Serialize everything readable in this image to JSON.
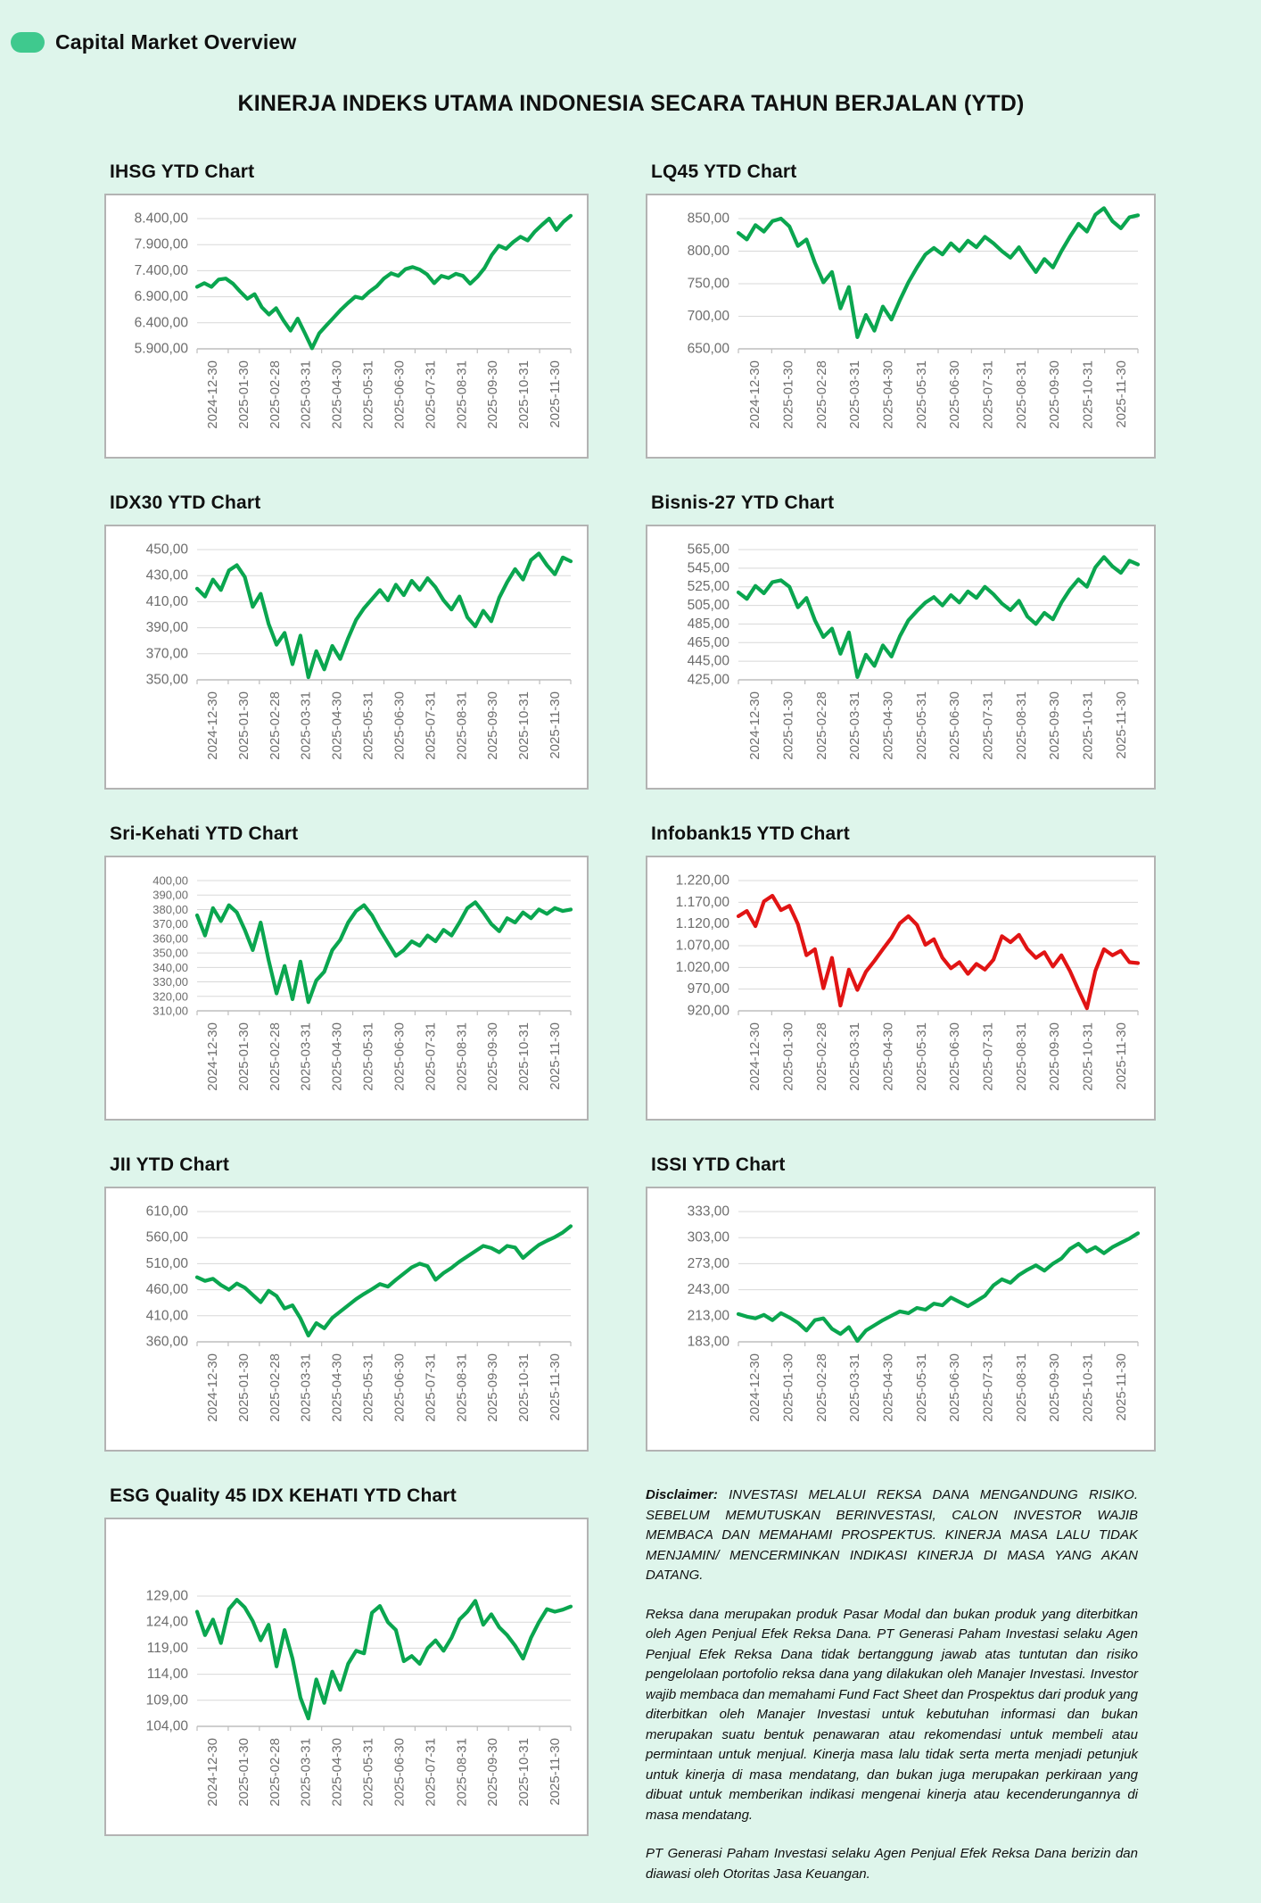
{
  "page": {
    "header_label": "Capital Market Overview",
    "main_title": "KINERJA INDEKS UTAMA INDONESIA SECARA TAHUN BERJALAN (YTD)"
  },
  "colors": {
    "background": "#def5eb",
    "brand_pill": "#3fc98e",
    "line_green": "#0aa64f",
    "line_red": "#e11414",
    "grid_gray": "#d8d8d8",
    "axis_gray": "#bdbdbd",
    "label_gray": "#6d6d6d"
  },
  "chart_data": {
    "type": "line-small-multiples",
    "grid": true,
    "legend": false,
    "x_labels": [
      "2024-12-30",
      "2025-01-30",
      "2025-02-28",
      "2025-03-31",
      "2025-04-30",
      "2025-05-31",
      "2025-06-30",
      "2025-07-31",
      "2025-08-31",
      "2025-09-30",
      "2025-10-31",
      "2025-11-30"
    ],
    "charts": [
      {
        "id": "ihsg",
        "column": "left",
        "order": 1,
        "type": "line",
        "title": "IHSG YTD Chart",
        "line_color": "#0aa64f",
        "ylim": [
          5900,
          8400
        ],
        "y_ticks": [
          8400,
          7900,
          7400,
          6900,
          6400,
          5900
        ],
        "y_tick_labels": [
          "8.400,00",
          "7.900,00",
          "7.400,00",
          "6.900,00",
          "6.400,00",
          "5.900,00"
        ],
        "values": [
          7090,
          7160,
          7090,
          7230,
          7250,
          7150,
          7000,
          6860,
          6950,
          6700,
          6560,
          6680,
          6450,
          6250,
          6480,
          6200,
          5910,
          6200,
          6350,
          6500,
          6650,
          6780,
          6900,
          6870,
          7000,
          7100,
          7250,
          7350,
          7300,
          7430,
          7470,
          7420,
          7330,
          7160,
          7300,
          7260,
          7340,
          7300,
          7150,
          7280,
          7450,
          7700,
          7880,
          7820,
          7950,
          8050,
          7980,
          8150,
          8280,
          8400,
          8180,
          8340,
          8455
        ]
      },
      {
        "id": "lq45",
        "column": "right",
        "order": 1,
        "type": "line",
        "title": "LQ45 YTD Chart",
        "line_color": "#0aa64f",
        "ylim": [
          650,
          850
        ],
        "y_ticks": [
          850,
          800,
          750,
          700,
          650
        ],
        "y_tick_labels": [
          "850,00",
          "800,00",
          "750,00",
          "700,00",
          "650,00"
        ],
        "values": [
          828,
          818,
          840,
          830,
          846,
          850,
          838,
          808,
          818,
          782,
          752,
          768,
          712,
          745,
          668,
          702,
          678,
          715,
          695,
          725,
          752,
          775,
          795,
          805,
          795,
          812,
          800,
          816,
          806,
          822,
          812,
          800,
          790,
          806,
          786,
          768,
          788,
          775,
          800,
          822,
          842,
          830,
          856,
          866,
          846,
          835,
          852,
          855
        ]
      },
      {
        "id": "idx30",
        "column": "left",
        "order": 2,
        "type": "line",
        "title": "IDX30 YTD Chart",
        "line_color": "#0aa64f",
        "ylim": [
          350,
          450
        ],
        "y_ticks": [
          450,
          430,
          410,
          390,
          370,
          350
        ],
        "y_tick_labels": [
          "450,00",
          "430,00",
          "410,00",
          "390,00",
          "370,00",
          "350,00"
        ],
        "values": [
          420,
          414,
          427,
          419,
          434,
          438,
          429,
          406,
          416,
          393,
          377,
          386,
          362,
          384,
          352,
          372,
          358,
          376,
          366,
          382,
          396,
          405,
          412,
          419,
          411,
          423,
          415,
          426,
          419,
          428,
          421,
          411,
          404,
          414,
          398,
          391,
          403,
          395,
          413,
          425,
          435,
          427,
          442,
          447,
          438,
          431,
          444,
          441
        ]
      },
      {
        "id": "bisnis27",
        "column": "right",
        "order": 2,
        "type": "line",
        "title": "Bisnis-27 YTD Chart",
        "line_color": "#0aa64f",
        "ylim": [
          425,
          565
        ],
        "y_ticks": [
          565,
          545,
          525,
          505,
          485,
          465,
          445,
          425
        ],
        "y_tick_labels": [
          "565,00",
          "545,00",
          "525,00",
          "505,00",
          "485,00",
          "465,00",
          "445,00",
          "425,00"
        ],
        "values": [
          519,
          512,
          526,
          518,
          530,
          532,
          525,
          503,
          513,
          489,
          471,
          480,
          453,
          476,
          428,
          452,
          440,
          462,
          450,
          472,
          489,
          499,
          508,
          514,
          505,
          516,
          508,
          520,
          513,
          525,
          517,
          507,
          500,
          510,
          493,
          485,
          497,
          490,
          508,
          522,
          533,
          525,
          546,
          557,
          547,
          540,
          553,
          549
        ]
      },
      {
        "id": "srikehati",
        "column": "left",
        "order": 3,
        "type": "line",
        "title": "Sri-Kehati YTD Chart",
        "line_color": "#0aa64f",
        "ylim": [
          310,
          400
        ],
        "y_ticks": [
          400,
          390,
          380,
          370,
          360,
          350,
          340,
          330,
          320,
          310
        ],
        "y_tick_labels": [
          "400,00",
          "390,00",
          "380,00",
          "370,00",
          "360,00",
          "350,00",
          "340,00",
          "330,00",
          "320,00",
          "310,00"
        ],
        "values": [
          376,
          362,
          381,
          372,
          383,
          378,
          366,
          352,
          371,
          345,
          322,
          341,
          318,
          344,
          316,
          331,
          337,
          352,
          359,
          371,
          379,
          383,
          376,
          366,
          357,
          348,
          352,
          358,
          355,
          362,
          358,
          366,
          362,
          371,
          381,
          385,
          378,
          370,
          365,
          374,
          371,
          378,
          374,
          380,
          377,
          381,
          379,
          380
        ]
      },
      {
        "id": "infobank15",
        "column": "right",
        "order": 3,
        "type": "line",
        "title": "Infobank15 YTD Chart",
        "line_color": "#e11414",
        "ylim": [
          920,
          1220
        ],
        "y_ticks": [
          1220,
          1170,
          1120,
          1070,
          1020,
          970,
          920
        ],
        "y_tick_labels": [
          "1.220,00",
          "1.170,00",
          "1.120,00",
          "1.070,00",
          "1.020,00",
          "970,00",
          "920,00"
        ],
        "values": [
          1138,
          1150,
          1115,
          1172,
          1185,
          1152,
          1162,
          1120,
          1048,
          1062,
          972,
          1042,
          932,
          1015,
          968,
          1010,
          1035,
          1062,
          1088,
          1122,
          1138,
          1118,
          1072,
          1085,
          1042,
          1018,
          1032,
          1005,
          1028,
          1015,
          1038,
          1092,
          1078,
          1095,
          1062,
          1042,
          1055,
          1022,
          1048,
          1012,
          968,
          926,
          1012,
          1062,
          1048,
          1058,
          1032,
          1030
        ]
      },
      {
        "id": "jii",
        "column": "left",
        "order": 4,
        "type": "line",
        "title": "JII YTD Chart",
        "line_color": "#0aa64f",
        "ylim": [
          360,
          610
        ],
        "y_ticks": [
          610,
          560,
          510,
          460,
          410,
          360
        ],
        "y_tick_labels": [
          "610,00",
          "560,00",
          "510,00",
          "460,00",
          "410,00",
          "360,00"
        ],
        "values": [
          484,
          477,
          481,
          469,
          460,
          472,
          464,
          450,
          436,
          458,
          448,
          424,
          430,
          405,
          372,
          396,
          386,
          406,
          418,
          430,
          442,
          452,
          461,
          471,
          466,
          479,
          491,
          503,
          510,
          505,
          479,
          492,
          502,
          514,
          524,
          534,
          544,
          540,
          532,
          544,
          541,
          521,
          534,
          546,
          554,
          561,
          570,
          582
        ]
      },
      {
        "id": "issi",
        "column": "right",
        "order": 4,
        "type": "line",
        "title": "ISSI YTD Chart",
        "line_color": "#0aa64f",
        "ylim": [
          183,
          333
        ],
        "y_ticks": [
          333,
          303,
          273,
          243,
          213,
          183
        ],
        "y_tick_labels": [
          "333,00",
          "303,00",
          "273,00",
          "243,00",
          "213,00",
          "183,00"
        ],
        "values": [
          215,
          212,
          210,
          214,
          208,
          216,
          211,
          205,
          196,
          208,
          210,
          198,
          192,
          200,
          184,
          196,
          202,
          208,
          213,
          218,
          216,
          222,
          220,
          227,
          225,
          234,
          229,
          224,
          230,
          236,
          248,
          255,
          251,
          260,
          266,
          271,
          265,
          273,
          279,
          290,
          296,
          287,
          292,
          285,
          292,
          297,
          302,
          308
        ]
      },
      {
        "id": "esg",
        "column": "left",
        "order": 5,
        "type": "line",
        "title": "ESG Quality 45 IDX KEHATI YTD Chart",
        "line_color": "#0aa64f",
        "ylim": [
          104,
          129
        ],
        "y_ticks": [
          129,
          124,
          119,
          114,
          109,
          104
        ],
        "y_tick_labels": [
          "129,00",
          "124,00",
          "119,00",
          "114,00",
          "109,00",
          "104,00"
        ],
        "values": [
          126,
          121.5,
          124.5,
          120,
          126.5,
          128.3,
          126.8,
          124.2,
          120.5,
          123.5,
          115.5,
          122.5,
          117,
          109.5,
          105.5,
          113,
          108.5,
          114.5,
          111,
          116,
          118.5,
          118,
          125.8,
          127.1,
          124,
          122.5,
          116.5,
          117.5,
          116,
          119,
          120.5,
          118.5,
          121,
          124.5,
          126,
          128.1,
          123.5,
          125.5,
          123,
          121.5,
          119.5,
          117,
          121,
          124,
          126.5,
          126,
          126.4,
          127
        ]
      }
    ]
  },
  "disclaimer": {
    "heading": "Disclaimer:",
    "p1": "INVESTASI MELALUI REKSA DANA MENGANDUNG RISIKO. SEBELUM MEMUTUSKAN BERINVESTASI, CALON INVESTOR WAJIB MEMBACA DAN MEMAHAMI PROSPEKTUS. KINERJA MASA LALU TIDAK MENJAMIN/ MENCERMINKAN INDIKASI KINERJA DI MASA YANG AKAN DATANG.",
    "p2": "Reksa dana merupakan produk Pasar Modal dan bukan produk yang diterbitkan oleh Agen Penjual Efek Reksa Dana. PT Generasi Paham Investasi selaku Agen Penjual Efek Reksa Dana tidak bertanggung jawab atas tuntutan dan risiko pengelolaan portofolio reksa dana yang dilakukan oleh Manajer Investasi. Investor wajib membaca dan memahami Fund Fact Sheet dan Prospektus dari produk yang diterbitkan oleh Manajer Investasi untuk kebutuhan informasi dan bukan merupakan suatu bentuk penawaran atau rekomendasi untuk membeli atau permintaan untuk menjual. Kinerja masa lalu tidak serta merta menjadi petunjuk untuk kinerja di masa mendatang, dan bukan juga merupakan perkiraan yang dibuat untuk memberikan indikasi mengenai kinerja atau kecenderungannya di masa mendatang.",
    "p3": "PT Generasi Paham Investasi selaku Agen Penjual Efek Reksa Dana berizin dan diawasi oleh Otoritas Jasa Keuangan."
  }
}
